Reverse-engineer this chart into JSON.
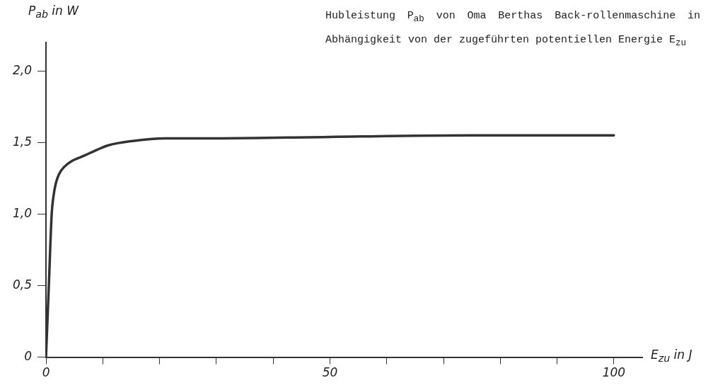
{
  "chart_data": {
    "type": "line",
    "title": "Hubleistung P$_{ab}$ von Oma Berthas Back-rollenmaschine in Abhängigkeit von der zugeführten potentiellen Energie E$_{zu}$",
    "xlabel": "E$_{zu}$ in J",
    "ylabel": "P$_{ab}$ in W",
    "x": [
      0,
      0.5,
      1,
      1.3,
      1.7,
      2.3,
      3.2,
      4.5,
      6.8,
      9,
      10.9,
      15,
      21,
      30,
      50,
      75,
      100
    ],
    "series": [
      {
        "color": "#333333",
        "values": [
          0,
          0.5,
          1.0,
          1.12,
          1.21,
          1.28,
          1.33,
          1.37,
          1.41,
          1.45,
          1.48,
          1.51,
          1.53,
          1.53,
          1.54,
          1.55,
          1.55
        ]
      }
    ],
    "xlim": [
      0,
      105
    ],
    "xticks": [
      0,
      {
        "value": 10,
        "label": null
      },
      {
        "value": 20,
        "label": null
      },
      {
        "value": 30,
        "label": null
      },
      {
        "value": 40,
        "label": null
      },
      50,
      {
        "value": 60,
        "label": null
      },
      {
        "value": 70,
        "label": null
      },
      {
        "value": 80,
        "label": null
      },
      {
        "value": 90,
        "label": null
      },
      100
    ],
    "ylim": [
      0,
      2.2
    ],
    "yticks": [
      0,
      {
        "value": 0.5,
        "label": "0,5"
      },
      {
        "value": 1,
        "label": "1,0"
      },
      {
        "value": 1.5,
        "label": "1,5"
      },
      {
        "value": 2,
        "label": "2,0"
      }
    ],
    "grid": false,
    "legend": false,
    "marker": "none",
    "line_style": "solid"
  }
}
